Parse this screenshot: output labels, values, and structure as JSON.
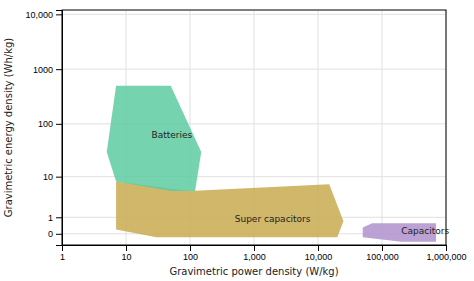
{
  "chart_data": {
    "type": "polygon",
    "xlabel": "Gravimetric power density (W/kg)",
    "ylabel": "Gravimetric energy density (Wh/kg)",
    "log": true,
    "grid": true,
    "series": [
      {
        "color": "#c8aa50",
        "x": [
          7,
          7,
          30,
          50,
          150,
          20000,
          25000,
          15000,
          100,
          7
        ],
        "values": [
          8,
          0.2,
          -0.15,
          -0.15,
          -0.15,
          -0.15,
          0.7,
          7,
          5,
          8
        ]
      },
      {
        "color": "#5ecba1",
        "x": [
          5,
          7,
          50,
          150,
          120,
          80,
          50,
          7,
          5
        ],
        "values": [
          30,
          500,
          500,
          30,
          5,
          5,
          5,
          8,
          30
        ]
      },
      {
        "color": "#b090cc",
        "x": [
          50000,
          70000,
          700000,
          700000,
          200000,
          50000
        ],
        "values": [
          0.3,
          0.55,
          0.55,
          -0.4,
          -0.4,
          -0.15
        ]
      }
    ],
    "annotations": [
      {
        "text": "Super capacitors",
        "x": 500,
        "y": 0.8
      },
      {
        "text": "Batteries",
        "x": 25,
        "y": 60
      },
      {
        "text": "Capacitors",
        "x": 200000,
        "y": 0.1
      }
    ],
    "xlim": [
      1,
      1000000
    ],
    "ylim": [
      -0.6,
      12000
    ],
    "xticks": [
      1,
      10,
      100,
      {
        "value": 1000,
        "label": "1,000"
      },
      {
        "value": 10000,
        "label": "10,000"
      },
      {
        "value": 100000,
        "label": "100,000"
      },
      {
        "value": 1000000,
        "label": "1,000,000"
      }
    ],
    "yticks": [
      {
        "value": 10000,
        "label": "10,000"
      },
      1000,
      100,
      10,
      1,
      0
    ]
  }
}
